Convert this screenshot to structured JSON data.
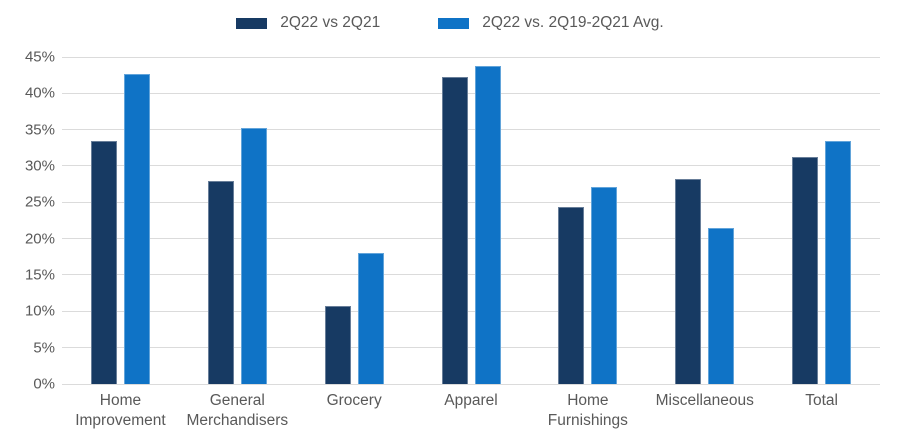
{
  "chart_data": {
    "type": "bar",
    "title": "",
    "xlabel": "",
    "ylabel": "",
    "categories": [
      "Home Improvement",
      "General Merchandisers",
      "Grocery",
      "Apparel",
      "Home Furnishings",
      "Miscellaneous",
      "Total"
    ],
    "series": [
      {
        "name": "2Q22 vs 2Q21",
        "color": "#173a63",
        "values": [
          33.4,
          27.9,
          10.7,
          42.2,
          24.3,
          28.2,
          31.3
        ]
      },
      {
        "name": "2Q22 vs. 2Q19-2Q21 Avg.",
        "color": "#0f73c6",
        "values": [
          42.7,
          35.2,
          18.0,
          43.8,
          27.1,
          21.5,
          33.5
        ]
      }
    ],
    "ylim": [
      0,
      45
    ],
    "ytick_step": 5,
    "ytick_labels": [
      "0%",
      "5%",
      "10%",
      "15%",
      "20%",
      "25%",
      "30%",
      "35%",
      "40%",
      "45%"
    ],
    "grid": true,
    "legend_position": "top"
  },
  "colors": {
    "series1": "#173a63",
    "series2": "#0f73c6",
    "gridline": "#dbdbdb",
    "axis_text": "#595959",
    "background": "#ffffff"
  }
}
